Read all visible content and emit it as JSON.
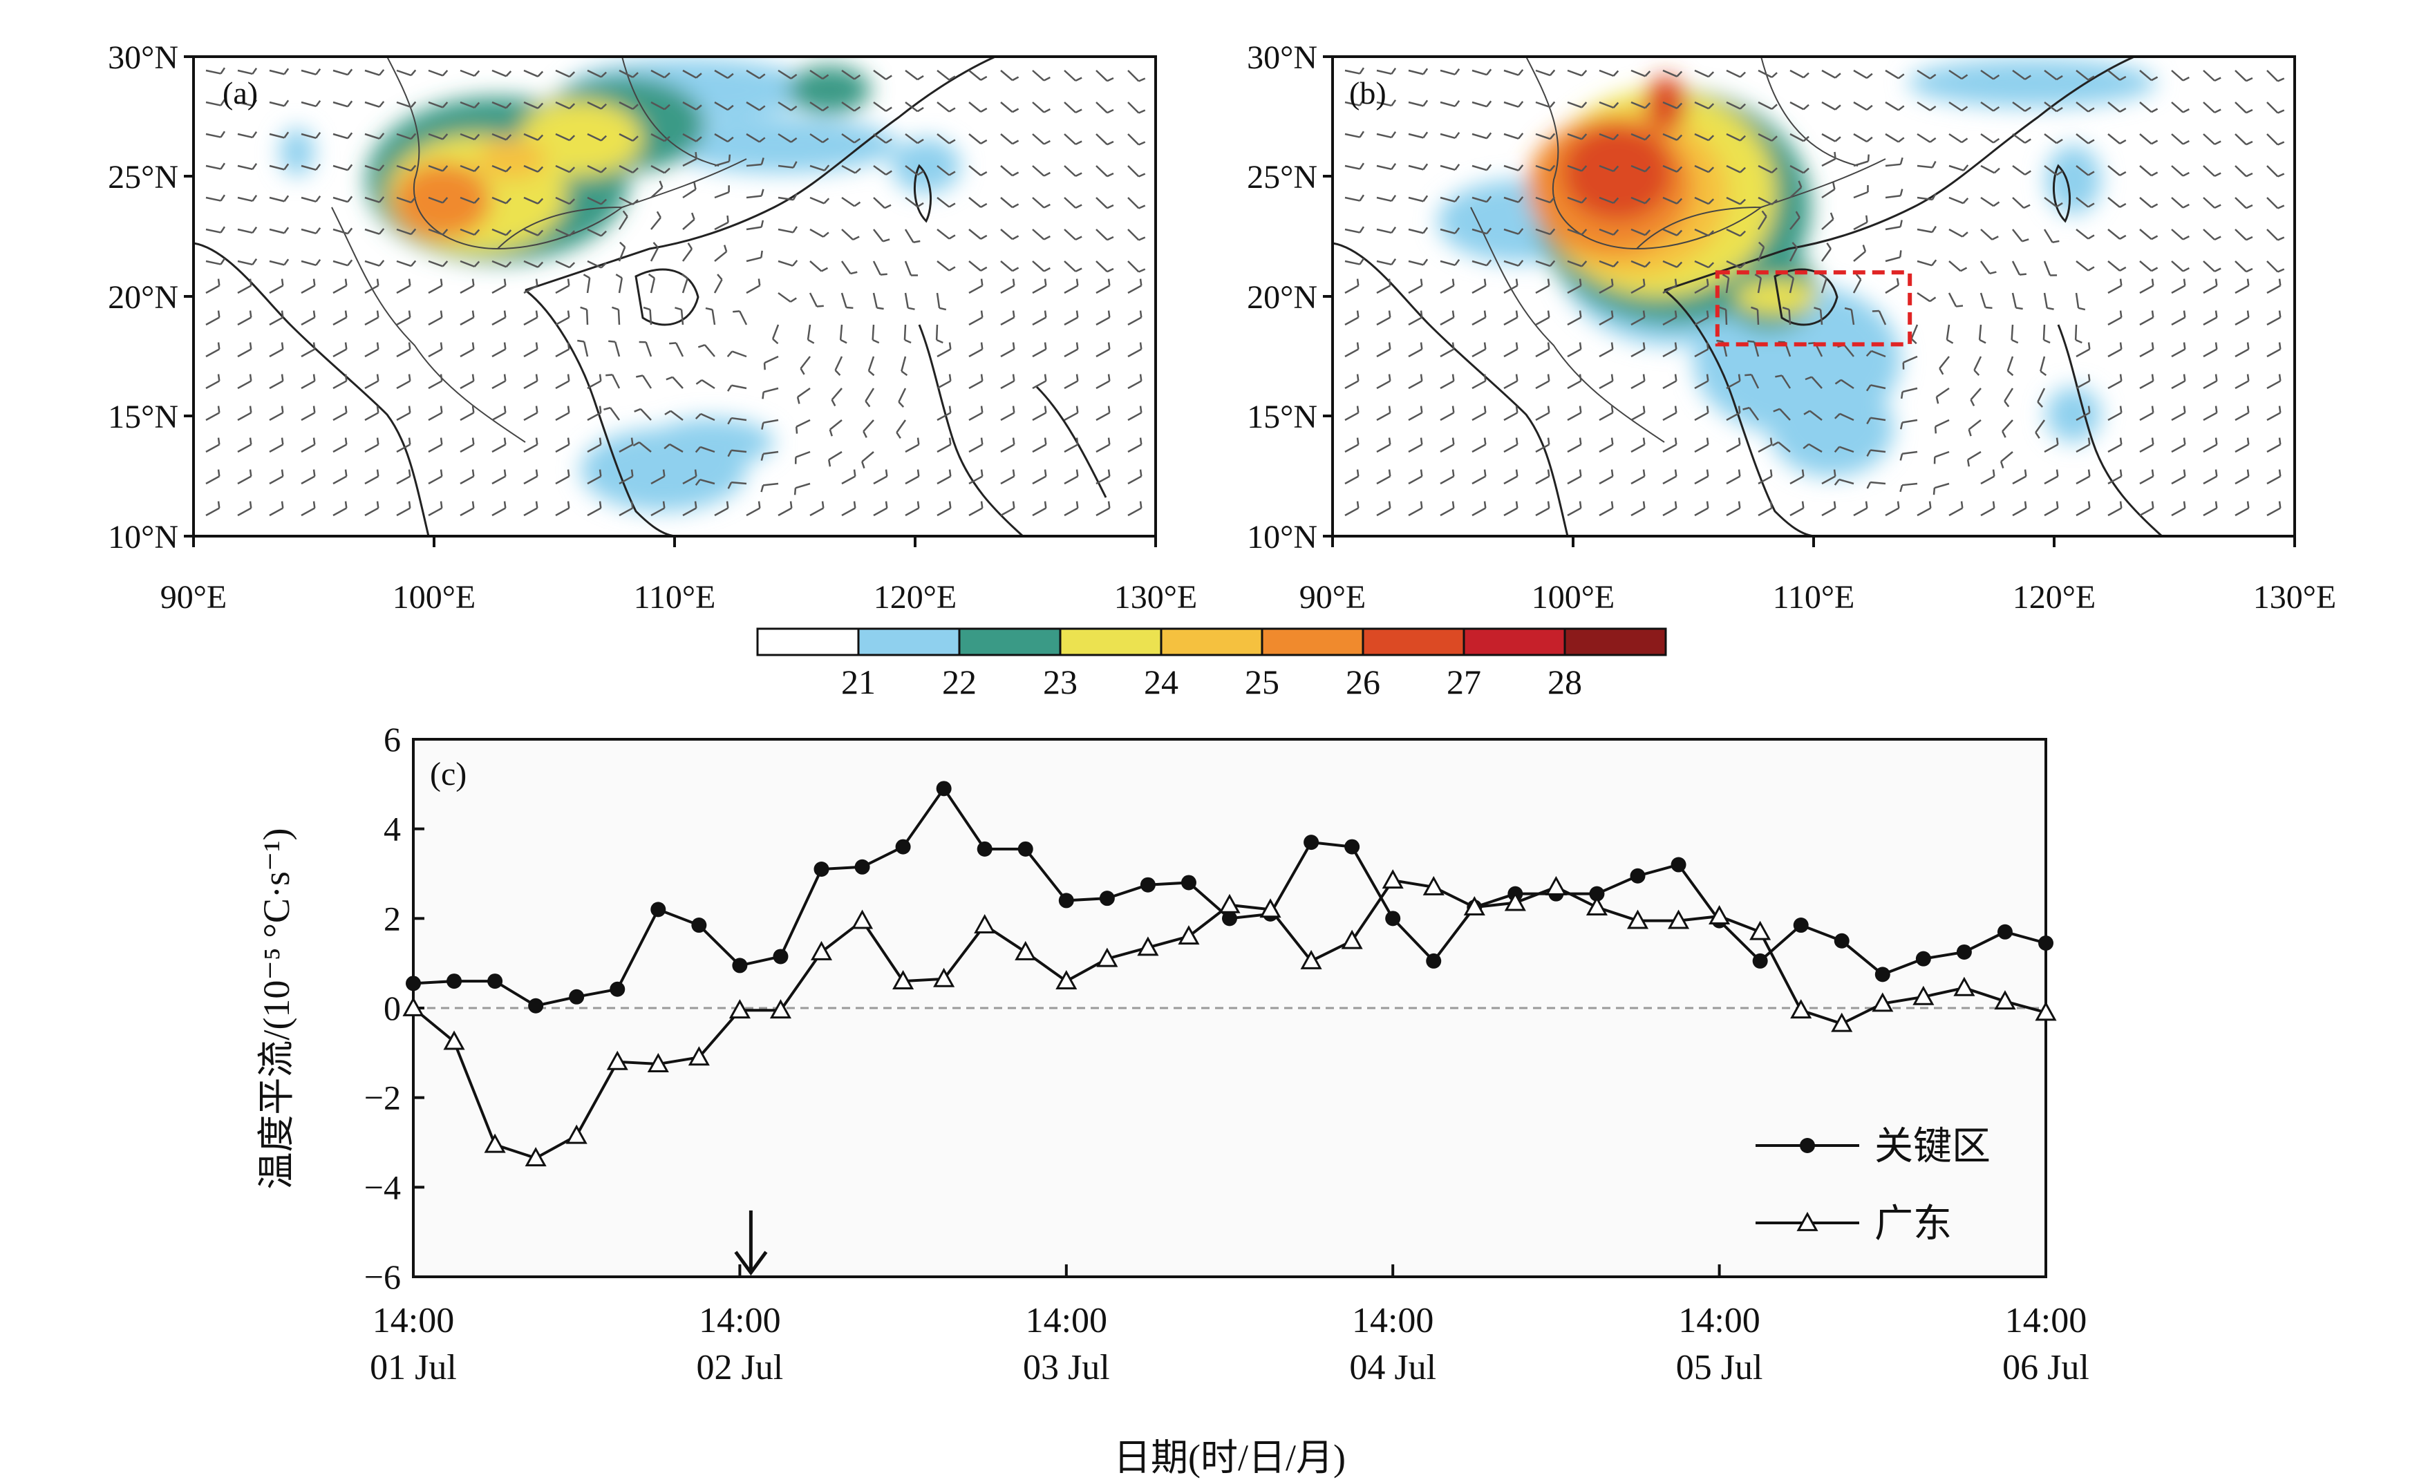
{
  "maps": [
    {
      "panel_label": "(a)",
      "lat_ticks": [
        "10°N",
        "15°N",
        "20°N",
        "25°N",
        "30°N"
      ],
      "lon_ticks": [
        "90°E",
        "100°E",
        "110°E",
        "120°E",
        "130°E"
      ]
    },
    {
      "panel_label": "(b)",
      "lat_ticks": [
        "10°N",
        "15°N",
        "20°N",
        "25°N",
        "30°N"
      ],
      "lon_ticks": [
        "90°E",
        "100°E",
        "110°E",
        "120°E",
        "130°E"
      ],
      "key_region_box": {
        "lon": [
          106,
          114
        ],
        "lat": [
          18,
          21
        ]
      }
    }
  ],
  "colorbar": {
    "ticks": [
      "21",
      "22",
      "23",
      "24",
      "25",
      "26",
      "27",
      "28"
    ],
    "colors": [
      "#ffffff",
      "#8fd0ee",
      "#3a9a86",
      "#ece250",
      "#f5c13f",
      "#f08a2d",
      "#dc4a24",
      "#c6202a",
      "#8b1a1a"
    ]
  },
  "chart_data": {
    "type": "line",
    "panel_label": "(c)",
    "ylabel": "温度平流/(10⁻⁵ °C·s⁻¹)",
    "xlabel": "日期(时/日/月)",
    "ylim": [
      -6,
      6
    ],
    "yticks": [
      "6",
      "4",
      "2",
      "0",
      "−2",
      "−4",
      "−6"
    ],
    "x_tick_labels": [
      {
        "time": "14:00",
        "date": "01 Jul"
      },
      {
        "time": "14:00",
        "date": "02 Jul"
      },
      {
        "time": "14:00",
        "date": "03 Jul"
      },
      {
        "time": "14:00",
        "date": "04 Jul"
      },
      {
        "time": "14:00",
        "date": "05 Jul"
      },
      {
        "time": "14:00",
        "date": "06 Jul"
      }
    ],
    "x_step_hours": 3,
    "arrow_at": "02 Jul 14:00",
    "legend_position": "lower-right",
    "series": [
      {
        "name": "关键区",
        "marker": "filled-circle",
        "values": [
          0.55,
          0.6,
          0.6,
          0.05,
          0.25,
          0.42,
          2.2,
          1.85,
          0.95,
          1.15,
          3.1,
          3.15,
          3.6,
          4.9,
          3.55,
          3.55,
          2.4,
          2.45,
          2.75,
          2.8,
          2.0,
          2.1,
          3.7,
          3.6,
          2.0,
          1.05,
          2.25,
          2.55,
          2.55,
          2.55,
          2.95,
          3.2,
          1.95,
          1.05,
          1.85,
          1.5,
          0.75,
          1.1,
          1.25,
          1.7,
          1.45
        ]
      },
      {
        "name": "广东",
        "marker": "open-triangle",
        "values": [
          0.0,
          -0.75,
          -3.05,
          -3.35,
          -2.85,
          -1.2,
          -1.25,
          -1.1,
          -0.05,
          -0.05,
          1.25,
          1.95,
          0.6,
          0.65,
          1.85,
          1.25,
          0.6,
          1.1,
          1.35,
          1.6,
          2.3,
          2.2,
          1.05,
          1.5,
          2.85,
          2.7,
          2.25,
          2.35,
          2.7,
          2.25,
          1.95,
          1.95,
          2.05,
          1.7,
          -0.05,
          -0.35,
          0.1,
          0.25,
          0.45,
          0.15,
          -0.1
        ]
      }
    ]
  }
}
